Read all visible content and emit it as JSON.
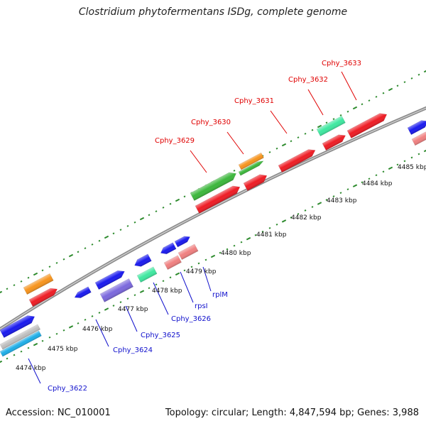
{
  "title": "Clostridium phytofermentans ISDg, complete genome",
  "footer": {
    "accession": "Accession: NC_010001",
    "summary": "Topology: circular; Length: 4,847,594 bp; Genes: 3,988"
  },
  "ticks": [
    "4474 kbp",
    "4475 kbp",
    "4476 kbp",
    "4477 kbp",
    "4478 kbp",
    "4479 kbp",
    "4480 kbp",
    "4481 kbp",
    "4482 kbp",
    "4483 kbp",
    "4484 kbp",
    "4485 kbp"
  ],
  "top_labels": [
    "Cphy_3629",
    "Cphy_3630",
    "Cphy_3631",
    "Cphy_3632",
    "Cphy_3633"
  ],
  "bottom_labels": [
    "Cphy_3622",
    "Cphy_3624",
    "Cphy_3625",
    "Cphy_3626",
    "rpsI",
    "rplM"
  ],
  "colors": {
    "red": "#ee1c24",
    "green": "#3cb73c",
    "orange": "#f7941d",
    "blue": "#1a1aee",
    "purple": "#7b68dd",
    "aqua": "#3fe8a0",
    "pink": "#f08080",
    "cyan": "#1eaee8",
    "grey": "#c0c0c0",
    "backbone": "#7a7a7a",
    "tick": "#2e8b2e",
    "label_top": "#e00000",
    "label_bottom": "#1010cc"
  }
}
